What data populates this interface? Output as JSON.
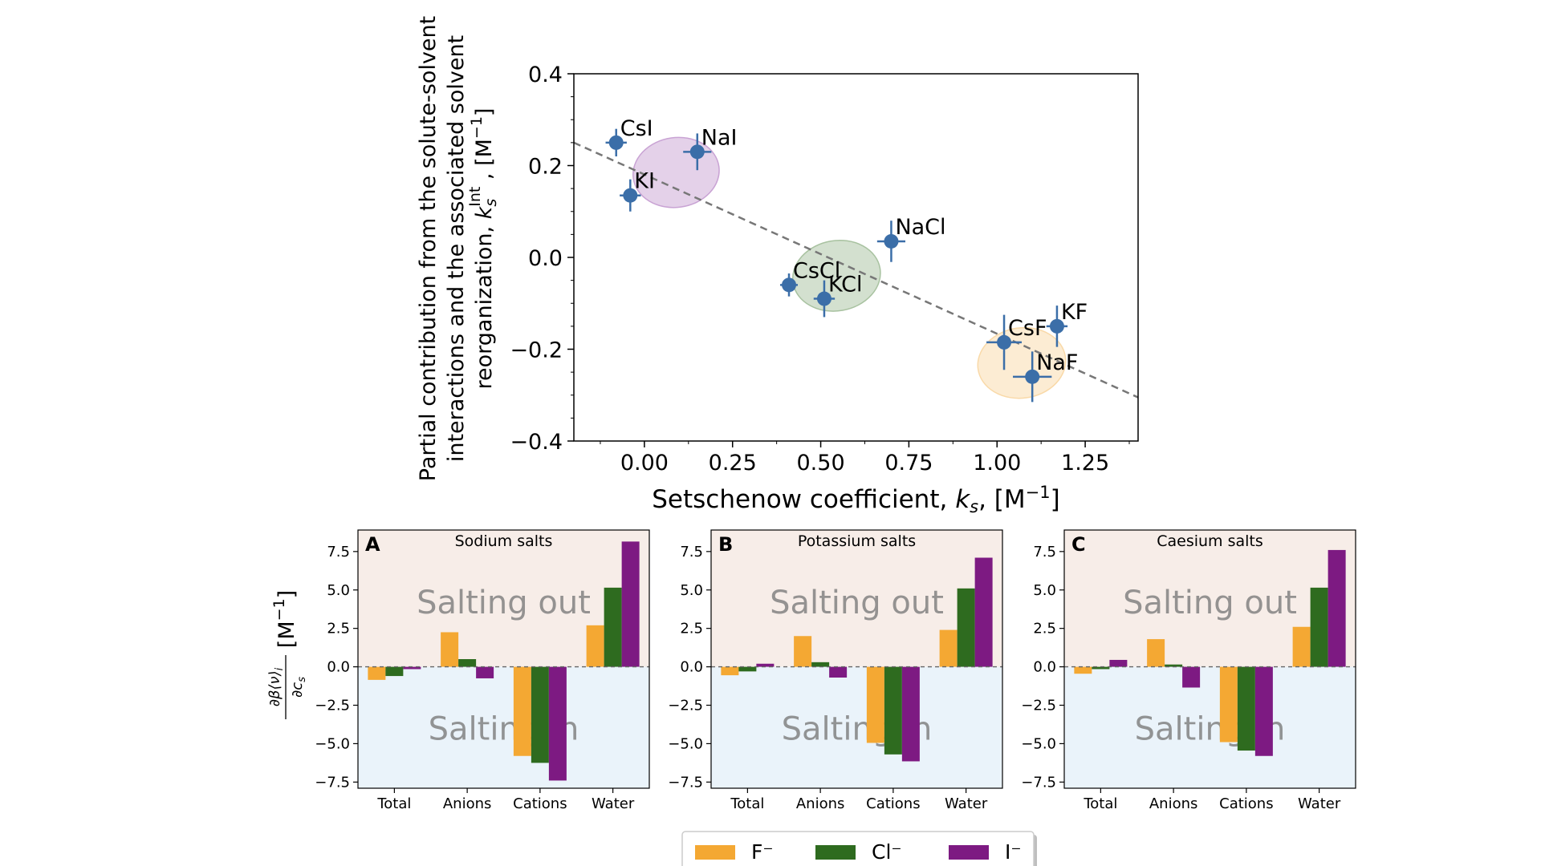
{
  "chart_data": [
    {
      "type": "scatter",
      "xlabel_prefix": "Setschenow coefficient, ",
      "xlabel_var": "k",
      "xlabel_sub": "s",
      "xlabel_suffix": ", [M",
      "xlabel_sup": "−1",
      "xlabel_end": "]",
      "ylabel_line1": "Partial contribution from the solute-solvent",
      "ylabel_line2": "interactions and the associated solvent",
      "ylabel_line3_prefix": "reorganization, ",
      "ylabel_var": "k",
      "ylabel_sub": "s",
      "ylabel_sup": "Int",
      "ylabel_suffix": " , [M",
      "ylabel_unit_sup": "−1",
      "ylabel_end": "]",
      "xlim": [
        -0.2,
        1.4
      ],
      "ylim": [
        -0.4,
        0.4
      ],
      "xticks": [
        0.0,
        0.25,
        0.5,
        0.75,
        1.0,
        1.25
      ],
      "xtick_labels": [
        "0.00",
        "0.25",
        "0.50",
        "0.75",
        "1.00",
        "1.25"
      ],
      "yticks": [
        -0.4,
        -0.2,
        0.0,
        0.2,
        0.4
      ],
      "ytick_labels": [
        "−0.4",
        "−0.2",
        "0.0",
        "0.2",
        "0.4"
      ],
      "points": [
        {
          "label": "CsI",
          "x": -0.08,
          "y": 0.25,
          "xerr": 0.03,
          "yerr": 0.03
        },
        {
          "label": "NaI",
          "x": 0.15,
          "y": 0.23,
          "xerr": 0.04,
          "yerr": 0.04
        },
        {
          "label": "KI",
          "x": -0.04,
          "y": 0.135,
          "xerr": 0.03,
          "yerr": 0.035
        },
        {
          "label": "NaCl",
          "x": 0.7,
          "y": 0.035,
          "xerr": 0.04,
          "yerr": 0.045
        },
        {
          "label": "CsCl",
          "x": 0.41,
          "y": -0.06,
          "xerr": 0.025,
          "yerr": 0.025
        },
        {
          "label": "KCl",
          "x": 0.51,
          "y": -0.09,
          "xerr": 0.03,
          "yerr": 0.04
        },
        {
          "label": "CsF",
          "x": 1.02,
          "y": -0.185,
          "xerr": 0.05,
          "yerr": 0.06
        },
        {
          "label": "KF",
          "x": 1.17,
          "y": -0.15,
          "xerr": 0.03,
          "yerr": 0.045
        },
        {
          "label": "NaF",
          "x": 1.1,
          "y": -0.26,
          "xerr": 0.055,
          "yerr": 0.055
        }
      ],
      "fit_line": {
        "x": [
          -0.2,
          1.4
        ],
        "y": [
          0.25,
          -0.305
        ]
      },
      "groups": [
        {
          "cx": 0.09,
          "cy": 0.185,
          "rx": 0.245,
          "ry": 0.152,
          "angle": -8,
          "color": "#c9a3d4"
        },
        {
          "cx": 0.545,
          "cy": -0.04,
          "rx": 0.25,
          "ry": 0.153,
          "angle": -10,
          "color": "#a8c2a0"
        },
        {
          "cx": 1.07,
          "cy": -0.23,
          "rx": 0.25,
          "ry": 0.153,
          "angle": -8,
          "color": "#f9d9a8"
        }
      ],
      "marker_color": "#3b6ea8",
      "line_color": "#777777"
    },
    {
      "type": "bar",
      "panel_letter": "A",
      "title": "Sodium salts",
      "categories": [
        "Total",
        "Anions",
        "Cations",
        "Water"
      ],
      "series": [
        {
          "name": "F⁻",
          "color": "#f4a833",
          "values": [
            -0.85,
            2.25,
            -5.8,
            2.7
          ]
        },
        {
          "name": "Cl⁻",
          "color": "#2e6b1f",
          "values": [
            -0.6,
            0.5,
            -6.25,
            5.15
          ]
        },
        {
          "name": "I⁻",
          "color": "#7d1a82",
          "values": [
            -0.15,
            -0.75,
            -7.4,
            8.15
          ]
        }
      ],
      "ylim": [
        -7.9,
        8.9
      ],
      "yticks": [
        -7.5,
        -5.0,
        -2.5,
        0.0,
        2.5,
        5.0,
        7.5
      ],
      "ytick_labels": [
        "−7.5",
        "−5.0",
        "−2.5",
        "0.0",
        "2.5",
        "5.0",
        "7.5"
      ],
      "region_top_label": "Salting out",
      "region_bottom_label": "Salting in"
    },
    {
      "type": "bar",
      "panel_letter": "B",
      "title": "Potassium salts",
      "categories": [
        "Total",
        "Anions",
        "Cations",
        "Water"
      ],
      "series": [
        {
          "name": "F⁻",
          "color": "#f4a833",
          "values": [
            -0.55,
            2.0,
            -4.95,
            2.4
          ]
        },
        {
          "name": "Cl⁻",
          "color": "#2e6b1f",
          "values": [
            -0.3,
            0.3,
            -5.7,
            5.1
          ]
        },
        {
          "name": "I⁻",
          "color": "#7d1a82",
          "values": [
            0.2,
            -0.7,
            -6.15,
            7.1
          ]
        }
      ],
      "ylim": [
        -7.9,
        8.9
      ],
      "yticks": [
        -7.5,
        -5.0,
        -2.5,
        0.0,
        2.5,
        5.0,
        7.5
      ],
      "ytick_labels": [
        "−7.5",
        "−5.0",
        "−2.5",
        "0.0",
        "2.5",
        "5.0",
        "7.5"
      ],
      "region_top_label": "Salting out",
      "region_bottom_label": "Salting in"
    },
    {
      "type": "bar",
      "panel_letter": "C",
      "title": "Caesium salts",
      "categories": [
        "Total",
        "Anions",
        "Cations",
        "Water"
      ],
      "series": [
        {
          "name": "F⁻",
          "color": "#f4a833",
          "values": [
            -0.45,
            1.8,
            -4.9,
            2.6
          ]
        },
        {
          "name": "Cl⁻",
          "color": "#2e6b1f",
          "values": [
            -0.15,
            0.15,
            -5.45,
            5.15
          ]
        },
        {
          "name": "I⁻",
          "color": "#7d1a82",
          "values": [
            0.45,
            -1.35,
            -5.8,
            7.6
          ]
        }
      ],
      "ylim": [
        -7.9,
        8.9
      ],
      "yticks": [
        -7.5,
        -5.0,
        -2.5,
        0.0,
        2.5,
        5.0,
        7.5
      ],
      "ytick_labels": [
        "−7.5",
        "−5.0",
        "−2.5",
        "0.0",
        "2.5",
        "5.0",
        "7.5"
      ],
      "region_top_label": "Salting out",
      "region_bottom_label": "Salting in"
    }
  ],
  "shared_ylabel": {
    "numerator": "∂β⟨ν⟩",
    "numerator_sub": "i",
    "denominator": "∂c",
    "denominator_sub": "s",
    "unit_prefix": "[M",
    "unit_sup": "−1",
    "unit_end": "]"
  },
  "legend": {
    "placement": "bottom-center",
    "entries": [
      {
        "label": "F⁻",
        "color": "#f4a833"
      },
      {
        "label": "Cl⁻",
        "color": "#2e6b1f"
      },
      {
        "label": "I⁻",
        "color": "#7d1a82"
      }
    ]
  },
  "colors": {
    "salting_out_bg": "#f7ede8",
    "salting_in_bg": "#eaf3fa",
    "region_text": "#7a7a7a"
  }
}
